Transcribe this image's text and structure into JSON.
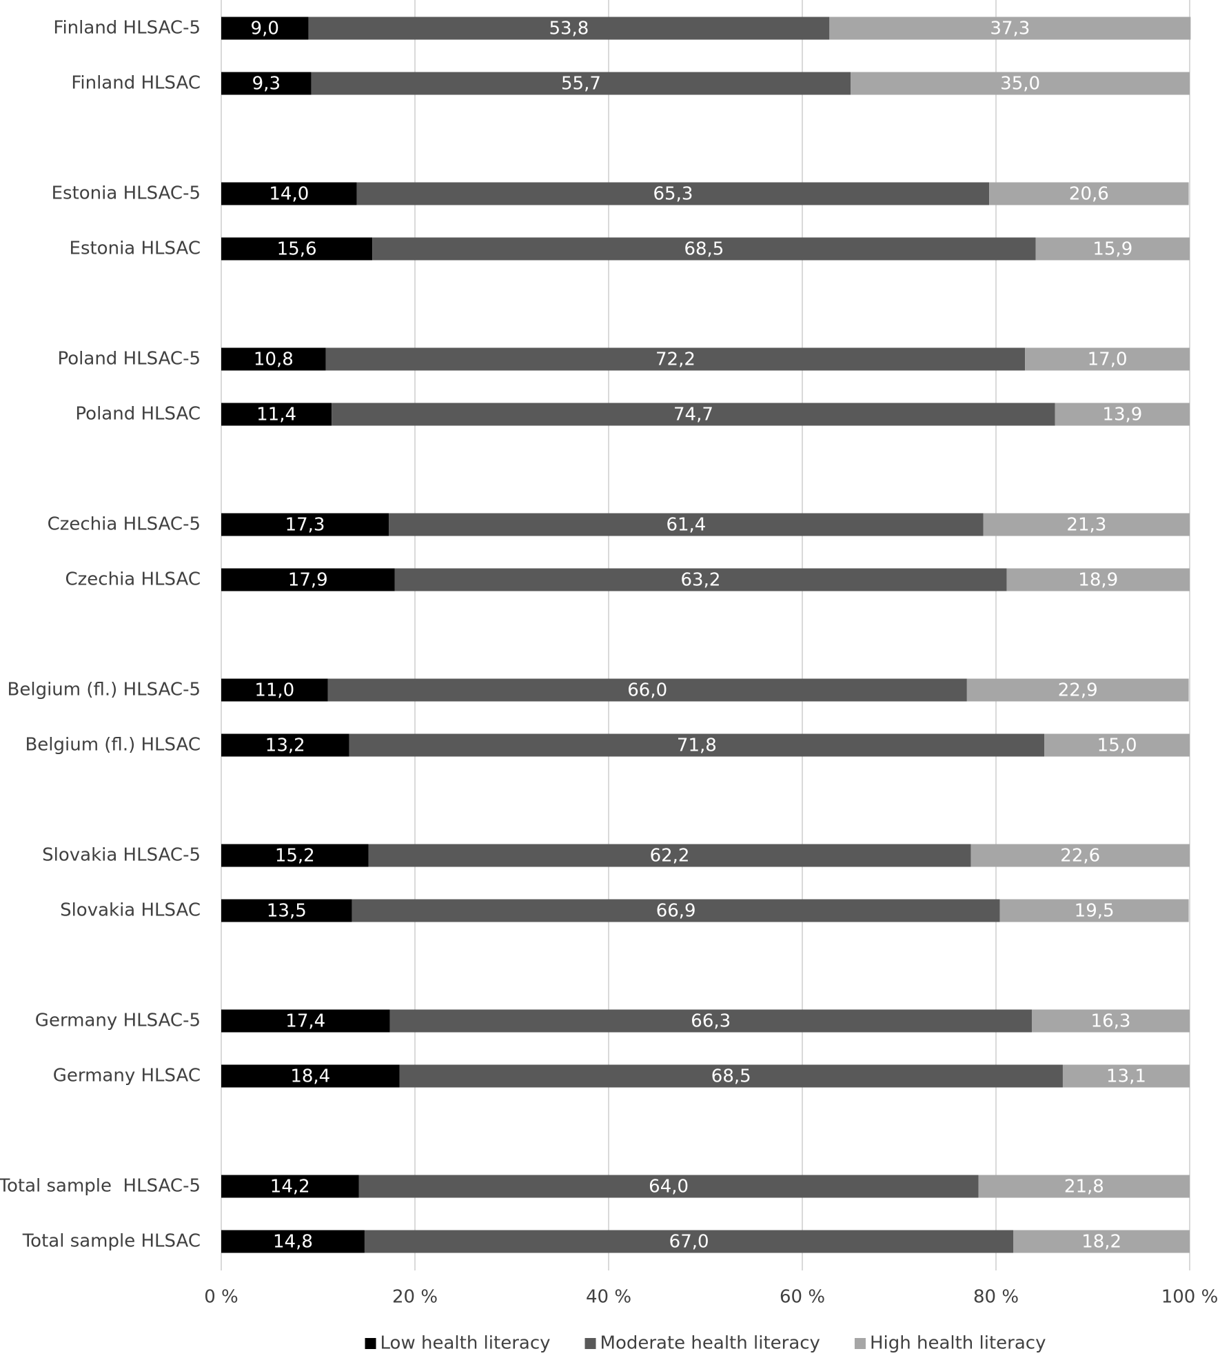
{
  "chart_data": {
    "type": "stacked-bar-horizontal",
    "categories": [
      "Finland HLSAC-5",
      "Finland HLSAC",
      null,
      "Estonia HLSAC-5",
      "Estonia HLSAC",
      null,
      "Poland HLSAC-5",
      "Poland HLSAC",
      null,
      "Czechia HLSAC-5",
      "Czechia HLSAC",
      null,
      "Belgium (fl.) HLSAC-5",
      "Belgium (fl.) HLSAC",
      null,
      "Slovakia HLSAC-5",
      "Slovakia HLSAC",
      null,
      "Germany HLSAC-5",
      "Germany HLSAC",
      null,
      "Total sample  HLSAC-5",
      "Total sample HLSAC"
    ],
    "series": [
      {
        "name": "Low health literacy",
        "color": "#000000",
        "values": [
          9.0,
          9.3,
          null,
          14.0,
          15.6,
          null,
          10.8,
          11.4,
          null,
          17.3,
          17.9,
          null,
          11.0,
          13.2,
          null,
          15.2,
          13.5,
          null,
          17.4,
          18.4,
          null,
          14.2,
          14.8
        ],
        "value_labels": [
          "9,0",
          "9,3",
          null,
          "14,0",
          "15,6",
          null,
          "10,8",
          "11,4",
          null,
          "17,3",
          "17,9",
          null,
          "11,0",
          "13,2",
          null,
          "15,2",
          "13,5",
          null,
          "17,4",
          "18,4",
          null,
          "14,2",
          "14,8"
        ]
      },
      {
        "name": "Moderate health literacy",
        "color": "#595959",
        "values": [
          53.8,
          55.7,
          null,
          65.3,
          68.5,
          null,
          72.2,
          74.7,
          null,
          61.4,
          63.2,
          null,
          66.0,
          71.8,
          null,
          62.2,
          66.9,
          null,
          66.3,
          68.5,
          null,
          64.0,
          67.0
        ],
        "value_labels": [
          "53,8",
          "55,7",
          null,
          "65,3",
          "68,5",
          null,
          "72,2",
          "74,7",
          null,
          "61,4",
          "63,2",
          null,
          "66,0",
          "71,8",
          null,
          "62,2",
          "66,9",
          null,
          "66,3",
          "68,5",
          null,
          "64,0",
          "67,0"
        ]
      },
      {
        "name": "High health literacy",
        "color": "#a6a6a6",
        "values": [
          37.3,
          35.0,
          null,
          20.6,
          15.9,
          null,
          17.0,
          13.9,
          null,
          21.3,
          18.9,
          null,
          22.9,
          15.0,
          null,
          22.6,
          19.5,
          null,
          16.3,
          13.1,
          null,
          21.8,
          18.2
        ],
        "value_labels": [
          "37,3",
          "35,0",
          null,
          "20,6",
          "15,9",
          null,
          "17,0",
          "13,9",
          null,
          "21,3",
          "18,9",
          null,
          "22,9",
          "15,0",
          null,
          "22,6",
          "19,5",
          null,
          "16,3",
          "13,1",
          null,
          "21,8",
          "18,2"
        ]
      }
    ],
    "xlim": [
      0,
      100
    ],
    "xticks": [
      {
        "value": 0,
        "label": "0 %"
      },
      {
        "value": 20,
        "label": "20 %"
      },
      {
        "value": 40,
        "label": "40 %"
      },
      {
        "value": 60,
        "label": "60 %"
      },
      {
        "value": 80,
        "label": "80 %"
      },
      {
        "value": 100,
        "label": "100 %"
      }
    ],
    "grid": true,
    "legend": "bottom"
  }
}
